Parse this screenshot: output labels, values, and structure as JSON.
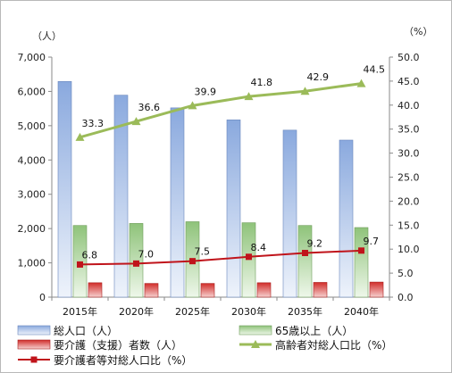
{
  "chart_data": {
    "type": "bar",
    "categories": [
      "2015年",
      "2020年",
      "2025年",
      "2030年",
      "2035年",
      "2040年"
    ],
    "left_axis": {
      "unit": "（人）",
      "ylim": [
        0,
        7000
      ],
      "step": 1000
    },
    "right_axis": {
      "unit": "（%）",
      "ylim": [
        0,
        50
      ],
      "step": 5
    },
    "series": [
      {
        "name": "総人口（人）",
        "kind": "bar",
        "axis": "left",
        "color": "#7f9fd4",
        "values": [
          6290,
          5890,
          5520,
          5170,
          4870,
          4580
        ]
      },
      {
        "name": "65歳以上（人）",
        "kind": "bar",
        "axis": "left",
        "color": "#8fc37a",
        "values": [
          2090,
          2150,
          2200,
          2170,
          2090,
          2030
        ]
      },
      {
        "name": "要介護（支援）者数（人）",
        "kind": "bar",
        "axis": "left",
        "color": "#d9302c",
        "values": [
          420,
          400,
          400,
          420,
          430,
          440
        ]
      },
      {
        "name": "高齢者対総人口比（%）",
        "kind": "line",
        "axis": "right",
        "color": "#9bbb59",
        "values": [
          33.3,
          36.6,
          39.9,
          41.8,
          42.9,
          44.5
        ],
        "labels": [
          "33.3",
          "36.6",
          "39.9",
          "41.8",
          "42.9",
          "44.5"
        ]
      },
      {
        "name": "要介護者等対総人口比（%）",
        "kind": "line",
        "axis": "right",
        "color": "#c0141b",
        "values": [
          6.8,
          7.0,
          7.5,
          8.4,
          9.2,
          9.7
        ],
        "labels": [
          "6.8",
          "7.0",
          "7.5",
          "8.4",
          "9.2",
          "9.7"
        ]
      }
    ],
    "legend_order": [
      "総人口（人）",
      "65歳以上（人）",
      "要介護（支援）者数（人）",
      "高齢者対総人口比（%）",
      "要介護者等対総人口比（%）"
    ],
    "grid": false,
    "legend_position": "bottom"
  }
}
